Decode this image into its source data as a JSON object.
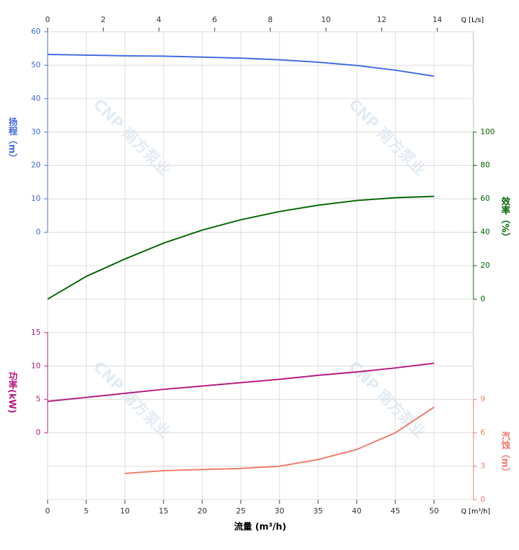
{
  "chart_data": {
    "type": "line",
    "watermark": "CNP 南方泵业",
    "x": [
      0,
      5,
      10,
      15,
      20,
      25,
      30,
      35,
      40,
      45,
      50
    ],
    "xlim": [
      0,
      55.1
    ],
    "xticks": [
      0,
      5,
      10,
      15,
      20,
      25,
      30,
      35,
      40,
      45,
      50
    ],
    "xlabel": "流量 (m³/h)",
    "xunit": "Q [m³/h]",
    "x2lim": [
      0,
      15.3
    ],
    "x2ticks": [
      0,
      2,
      4,
      6,
      8,
      10,
      12,
      14
    ],
    "x2unit": "Q [L/s]",
    "grid": true,
    "y_axes": [
      {
        "label": "扬程（m）",
        "side": "left",
        "color": "#4169e1",
        "lim": [
          -80,
          60
        ],
        "ticks": [
          0,
          10,
          20,
          30,
          40,
          50,
          60
        ]
      },
      {
        "label": "效率（%）",
        "side": "right",
        "color": "#006400",
        "lim": [
          -120,
          160
        ],
        "ticks": [
          0,
          20,
          40,
          60,
          80,
          100
        ]
      },
      {
        "label": "功率(kW)",
        "side": "left",
        "color": "#b5177f",
        "lim": [
          -10,
          60
        ],
        "ticks": [
          0,
          5,
          10,
          15
        ]
      },
      {
        "label": "汽蚀（m）",
        "side": "right",
        "color": "#f07a6a",
        "lim": [
          0,
          42
        ],
        "ticks": [
          0,
          3,
          6,
          9
        ]
      }
    ],
    "series": [
      {
        "axis": 0,
        "color": "#4169e1",
        "values": [
          53.2,
          53.0,
          52.8,
          52.7,
          52.4,
          52.1,
          51.6,
          50.9,
          49.9,
          48.5,
          46.7
        ]
      },
      {
        "axis": 1,
        "color": "#006400",
        "values": [
          0,
          13.6,
          24,
          33.5,
          41.3,
          47.5,
          52.4,
          56.2,
          59,
          60.7,
          61.5
        ]
      },
      {
        "axis": 2,
        "color": "#b5177f",
        "values": [
          4.7,
          5.3,
          5.9,
          6.5,
          7.0,
          7.5,
          8.0,
          8.6,
          9.1,
          9.7,
          10.4
        ]
      },
      {
        "axis": 3,
        "color": "#f07a6a",
        "values": [
          null,
          null,
          2.35,
          2.6,
          2.7,
          2.8,
          3.0,
          3.6,
          4.5,
          6.0,
          8.3
        ]
      }
    ]
  }
}
